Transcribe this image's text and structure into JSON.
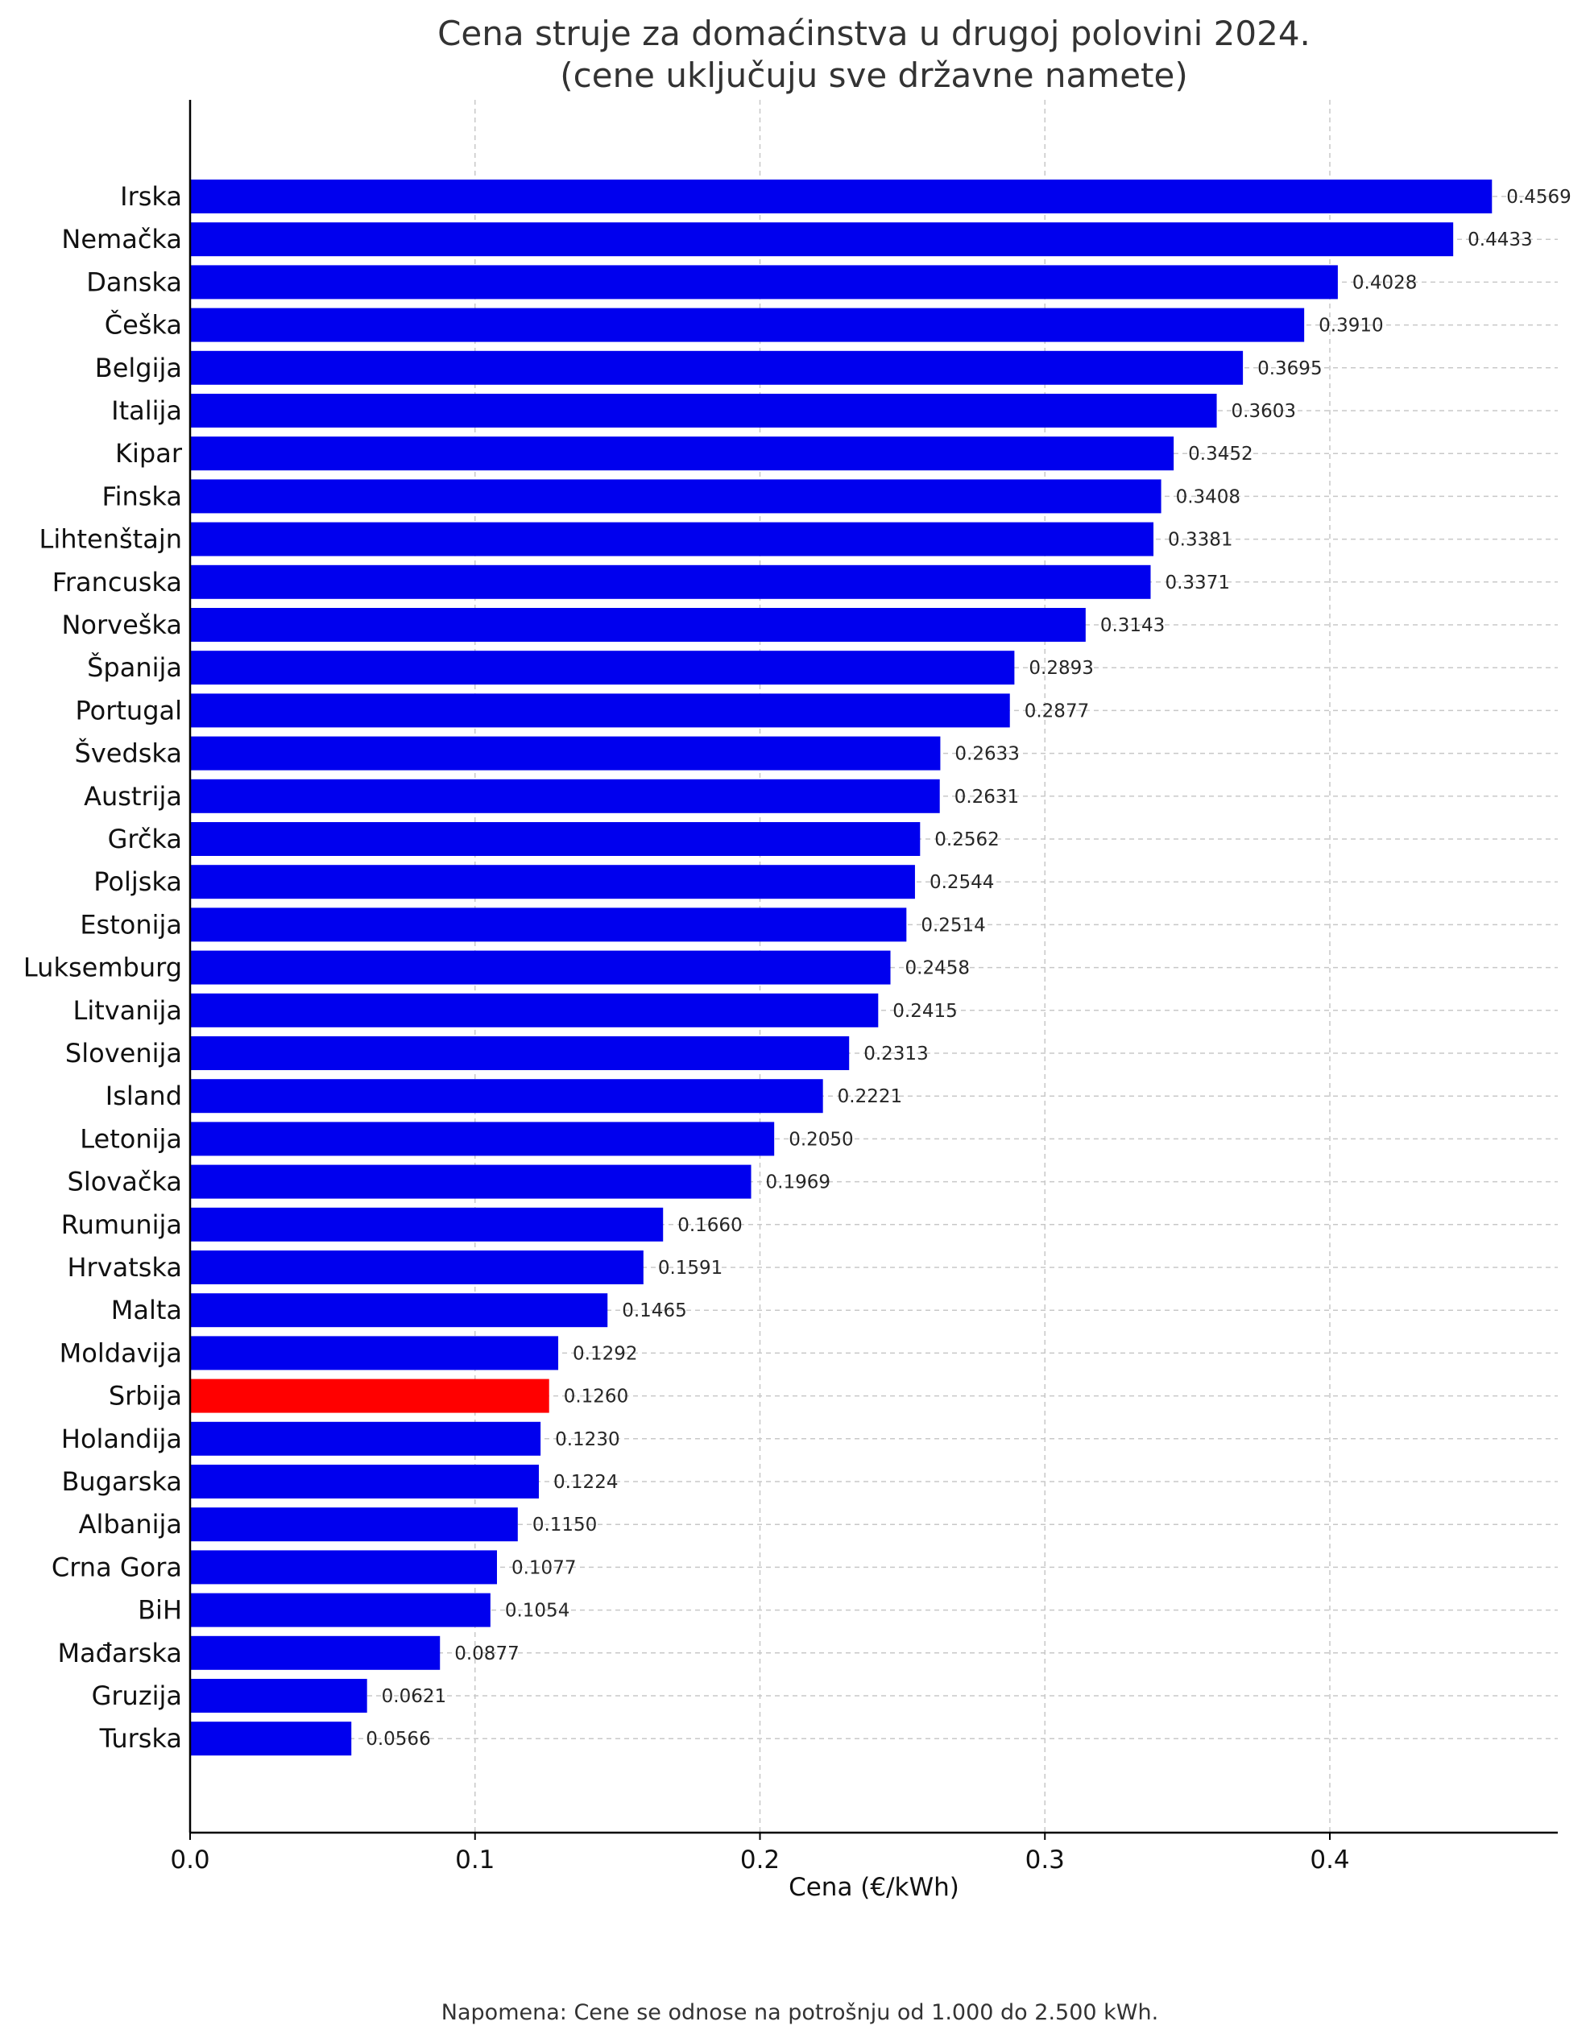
{
  "chart_data": {
    "type": "bar",
    "orientation": "horizontal",
    "title": [
      "Cena struje za domaćinstva u drugoj polovini 2024.",
      "(cene uključuju sve državne namete)"
    ],
    "xlabel": "Cena (€/kWh)",
    "ylabel": "",
    "xlim": [
      0,
      0.48
    ],
    "x_ticks": [
      0.0,
      0.1,
      0.2,
      0.3,
      0.4
    ],
    "x_tick_labels": [
      "0.0",
      "0.1",
      "0.2",
      "0.3",
      "0.4"
    ],
    "grid": true,
    "categories": [
      "Irska",
      "Nemačka",
      "Danska",
      "Češka",
      "Belgija",
      "Italija",
      "Kipar",
      "Finska",
      "Lihtenštajn",
      "Francuska",
      "Norveška",
      "Španija",
      "Portugal",
      "Švedska",
      "Austrija",
      "Grčka",
      "Poljska",
      "Estonija",
      "Luksemburg",
      "Litvanija",
      "Slovenija",
      "Island",
      "Letonija",
      "Slovačka",
      "Rumunija",
      "Hrvatska",
      "Malta",
      "Moldavija",
      "Srbija",
      "Holandija",
      "Bugarska",
      "Albanija",
      "Crna Gora",
      "BiH",
      "Mađarska",
      "Gruzija",
      "Turska"
    ],
    "values": [
      0.4569,
      0.4433,
      0.4028,
      0.391,
      0.3695,
      0.3603,
      0.3452,
      0.3408,
      0.3381,
      0.3371,
      0.3143,
      0.2893,
      0.2877,
      0.2633,
      0.2631,
      0.2562,
      0.2544,
      0.2514,
      0.2458,
      0.2415,
      0.2313,
      0.2221,
      0.205,
      0.1969,
      0.166,
      0.1591,
      0.1465,
      0.1292,
      0.126,
      0.123,
      0.1224,
      0.115,
      0.1077,
      0.1054,
      0.0877,
      0.0621,
      0.0566
    ],
    "value_labels": [
      "0.4569",
      "0.4433",
      "0.4028",
      "0.3910",
      "0.3695",
      "0.3603",
      "0.3452",
      "0.3408",
      "0.3381",
      "0.3371",
      "0.3143",
      "0.2893",
      "0.2877",
      "0.2633",
      "0.2631",
      "0.2562",
      "0.2544",
      "0.2514",
      "0.2458",
      "0.2415",
      "0.2313",
      "0.2221",
      "0.2050",
      "0.1969",
      "0.1660",
      "0.1591",
      "0.1465",
      "0.1292",
      "0.1260",
      "0.1230",
      "0.1224",
      "0.1150",
      "0.1077",
      "0.1054",
      "0.0877",
      "0.0621",
      "0.0566"
    ],
    "colors": {
      "default": "#0000ee",
      "highlight": "#ff0000",
      "grid": "#c8c8c8",
      "axis": "#000000"
    },
    "highlight_category": "Srbija",
    "note": "Napomena: Cene se odnose na potrošnju od 1.000 do 2.500 kWh."
  }
}
